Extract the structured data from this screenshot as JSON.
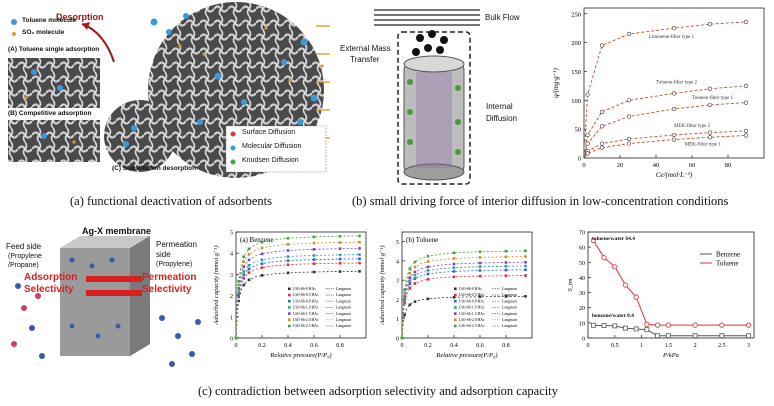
{
  "captions": {
    "a": "(a) functional deactivation of adsorbents",
    "b": "(b) small driving force of interior diffusion in low-concentration conditions",
    "c": "(c) contradiction between adsorption selectivity and adsorption capacity"
  },
  "panel_a": {
    "desorption": "Desorption",
    "legend_toluene": "Toluene molecule",
    "legend_so2": "SO₂ molecule",
    "label_A": "(A) Toluene single adsorption",
    "label_B": "(B) Competitive adsorption",
    "label_C": "(C) Substitution desorption",
    "diff_surface": "Surface Diffusion",
    "diff_molecular": "Molecular Diffusion",
    "diff_knudsen": "Knudsen Diffusion"
  },
  "panel_b_schematic": {
    "bulk_flow": "Bulk Flow",
    "external": "External Mass",
    "transfer": "Transfer",
    "internal": "Internal",
    "diffusion": "Diffusion"
  },
  "panel_c_membrane": {
    "title": "Ag-X membrane",
    "feed": "Feed side",
    "feed_sub": "(Propylene",
    "feed_sub2": "/Propane)",
    "perm": "Permeation",
    "perm2": "side",
    "perm_sub": "(Propylene)",
    "ads": "Adsorption",
    "ads_sel": "Selectivity",
    "perm_sel1": "Permeation",
    "perm_sel2": "Selectivity"
  },
  "chart_data": [
    {
      "type": "scatter",
      "id": "isotherm",
      "xlabel": "Ce/(mol·L⁻¹)",
      "ylabel": "q/(mg·g⁻¹)",
      "xlim": [
        0,
        100
      ],
      "ylim": [
        0,
        260
      ],
      "xticks": [
        0,
        20,
        40,
        60,
        80
      ],
      "yticks": [
        0,
        50,
        100,
        150,
        200,
        250
      ],
      "series": [
        {
          "name": "Limonene-filter type 1",
          "x": [
            2,
            10,
            25,
            50,
            70,
            90
          ],
          "y": [
            110,
            195,
            215,
            225,
            232,
            236
          ]
        },
        {
          "name": "Toluene-filter type 2",
          "x": [
            2,
            10,
            25,
            50,
            70,
            90
          ],
          "y": [
            40,
            80,
            100,
            112,
            120,
            125
          ]
        },
        {
          "name": "Toluene-filter type 1",
          "x": [
            2,
            10,
            25,
            50,
            70,
            90
          ],
          "y": [
            25,
            55,
            72,
            85,
            92,
            96
          ]
        },
        {
          "name": "MEK-filter type 2",
          "x": [
            2,
            10,
            25,
            50,
            70,
            90
          ],
          "y": [
            12,
            25,
            33,
            40,
            44,
            47
          ]
        },
        {
          "name": "MEK-filter type 1",
          "x": [
            2,
            10,
            25,
            50,
            70,
            90
          ],
          "y": [
            8,
            18,
            25,
            32,
            36,
            39
          ]
        }
      ]
    },
    {
      "type": "scatter",
      "id": "benzene",
      "title": "(a) Benzene",
      "xlabel": "Relative pressure(P/P₀)",
      "ylabel": "Adsorbed capacity (mmol·g⁻¹)",
      "xlim": [
        0,
        1
      ],
      "ylim": [
        0,
        5
      ],
      "xticks": [
        0,
        0.2,
        0.4,
        0.6,
        0.8
      ],
      "yticks": [
        0,
        1,
        2,
        3,
        4,
        5
      ],
      "series": [
        {
          "name": "UiO-66-0 HAc",
          "color": "#333333",
          "qm": 3.2
        },
        {
          "name": "UiO-66-0.5 HAc",
          "color": "#e03030",
          "qm": 3.6
        },
        {
          "name": "UiO-66-0.8 HAc",
          "color": "#3060d0",
          "qm": 3.8
        },
        {
          "name": "UiO-66-1.0 HAc",
          "color": "#30a0a0",
          "qm": 4.0
        },
        {
          "name": "UiO-66-1.5 HAc",
          "color": "#8040c0",
          "qm": 4.3
        },
        {
          "name": "UiO-66-2.0 HAc",
          "color": "#d09020",
          "qm": 4.6
        },
        {
          "name": "UiO-66-2.5 HAc",
          "color": "#40a040",
          "qm": 4.9
        }
      ],
      "legend_fit": "Langmuir"
    },
    {
      "type": "scatter",
      "id": "toluene",
      "title": "(b) Toluene",
      "xlabel": "Relative pressure(P/P₀)",
      "ylabel": "Adsorbed capacity (mmol·g⁻¹)",
      "xlim": [
        0,
        1
      ],
      "ylim": [
        0,
        5.5
      ],
      "xticks": [
        0,
        0.2,
        0.4,
        0.6,
        0.8
      ],
      "yticks": [
        0,
        1,
        2,
        3,
        4,
        5
      ],
      "series": [
        {
          "name": "UiO-66-0 HAc",
          "color": "#333333",
          "qm": 2.2
        },
        {
          "name": "UiO-66-0.5 HAc",
          "color": "#e03030",
          "qm": 3.3
        },
        {
          "name": "UiO-66-0.8 HAc",
          "color": "#3060d0",
          "qm": 3.6
        },
        {
          "name": "UiO-66-1.0 HAc",
          "color": "#30a0a0",
          "qm": 3.8
        },
        {
          "name": "UiO-66-1.5 HAc",
          "color": "#8040c0",
          "qm": 4.0
        },
        {
          "name": "UiO-66-2.0 HAc",
          "color": "#d09020",
          "qm": 4.3
        },
        {
          "name": "UiO-66-2.5 HAc",
          "color": "#40a040",
          "qm": 4.6
        }
      ],
      "legend_fit": "Langmuir"
    },
    {
      "type": "line",
      "id": "selectivity",
      "xlabel": "P/kPa",
      "ylabel": "S_tm",
      "xlim": [
        0,
        3.1
      ],
      "ylim": [
        0,
        70
      ],
      "xticks": [
        0,
        0.5,
        1.0,
        1.5,
        2.0,
        2.5,
        3.0
      ],
      "yticks": [
        0,
        10,
        20,
        30,
        40,
        50,
        60,
        70
      ],
      "annotations": [
        "toluene/water 64.4",
        "benzene/water 8.4"
      ],
      "series": [
        {
          "name": "Benzene",
          "color": "#555555",
          "x": [
            0.1,
            0.3,
            0.5,
            0.7,
            0.9,
            1.1,
            1.3,
            1.5,
            2.0,
            2.5,
            3.0
          ],
          "y": [
            8.4,
            8.2,
            8.0,
            6.5,
            6.0,
            5.5,
            1.5,
            1.5,
            1.5,
            1.5,
            1.5
          ]
        },
        {
          "name": "Toluene",
          "color": "#e03030",
          "x": [
            0.1,
            0.3,
            0.5,
            0.7,
            0.9,
            1.1,
            1.3,
            1.5,
            2.0,
            2.5,
            3.0
          ],
          "y": [
            64.4,
            53,
            47,
            35,
            27,
            9,
            8.5,
            8.5,
            8.5,
            8.5,
            8.5
          ]
        }
      ]
    }
  ]
}
